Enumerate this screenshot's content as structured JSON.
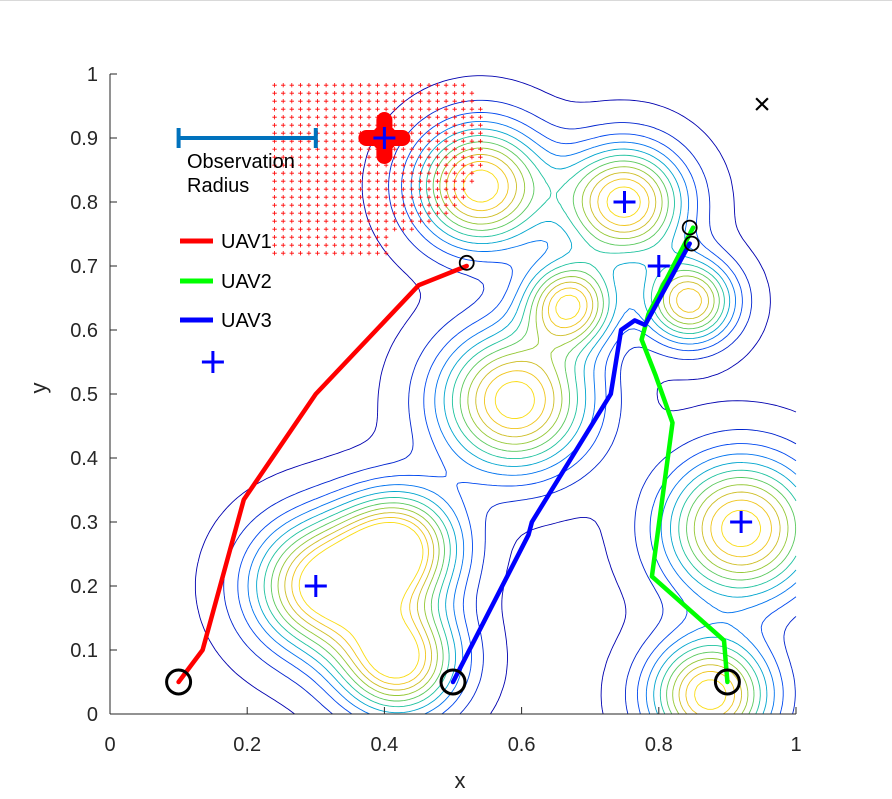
{
  "chart_data": {
    "type": "line",
    "xlabel": "x",
    "ylabel": "y",
    "xlim": [
      0,
      1
    ],
    "ylim": [
      0,
      1
    ],
    "xticks": [
      0,
      0.2,
      0.4,
      0.6,
      0.8,
      1
    ],
    "yticks": [
      0,
      0.1,
      0.2,
      0.3,
      0.4,
      0.5,
      0.6,
      0.7,
      0.8,
      0.9,
      1
    ],
    "xtick_labels": [
      "0",
      "0.2",
      "0.4",
      "0.6",
      "0.8",
      "1"
    ],
    "ytick_labels": [
      "0",
      "0.1",
      "0.2",
      "0.3",
      "0.4",
      "0.5",
      "0.6",
      "0.7",
      "0.8",
      "0.9",
      "1"
    ],
    "colors": {
      "uav1": "#ff0000",
      "uav2": "#00ff00",
      "uav3": "#0000ff",
      "targets": "#0000ff",
      "grid_points": "#ff0000",
      "radius_bar": "#0072bd",
      "start_marker": "#000000"
    },
    "series": [
      {
        "name": "UAV1",
        "x": [
          0.1,
          0.135,
          0.195,
          0.3,
          0.45,
          0.52
        ],
        "y": [
          0.05,
          0.1,
          0.335,
          0.5,
          0.67,
          0.7
        ]
      },
      {
        "name": "UAV2",
        "x": [
          0.9,
          0.895,
          0.79,
          0.82,
          0.795,
          0.775,
          0.785,
          0.85
        ],
        "y": [
          0.05,
          0.115,
          0.215,
          0.455,
          0.53,
          0.585,
          0.625,
          0.76
        ]
      },
      {
        "name": "UAV3",
        "x": [
          0.5,
          0.61,
          0.615,
          0.73,
          0.745,
          0.765,
          0.78,
          0.845
        ],
        "y": [
          0.05,
          0.28,
          0.3,
          0.5,
          0.6,
          0.615,
          0.608,
          0.735
        ]
      }
    ],
    "legend": {
      "entries": [
        "UAV1",
        "UAV2",
        "UAV3"
      ],
      "location": "upper-left"
    },
    "start_points": [
      {
        "x": 0.1,
        "y": 0.05
      },
      {
        "x": 0.5,
        "y": 0.05
      },
      {
        "x": 0.9,
        "y": 0.05
      }
    ],
    "end_points": [
      {
        "x": 0.52,
        "y": 0.705
      },
      {
        "x": 0.845,
        "y": 0.76
      },
      {
        "x": 0.848,
        "y": 0.735
      }
    ],
    "targets": [
      {
        "x": 0.4,
        "y": 0.9
      },
      {
        "x": 0.75,
        "y": 0.8
      },
      {
        "x": 0.8,
        "y": 0.7
      },
      {
        "x": 0.15,
        "y": 0.55
      },
      {
        "x": 0.92,
        "y": 0.3
      },
      {
        "x": 0.3,
        "y": 0.2
      }
    ],
    "goal_marker": {
      "symbol": "×",
      "x": 0.95,
      "y": 0.95
    },
    "observation_radius": {
      "label_line1": "Observation",
      "label_line2": "Radius",
      "x_start": 0.1,
      "x_end": 0.3,
      "y": 0.9
    },
    "visited_region": {
      "x_range": [
        0.24,
        0.58
      ],
      "y_range": [
        0.72,
        0.99
      ],
      "step": 0.0125,
      "circle_center": [
        0.4,
        0.9
      ],
      "circle_radius": 0.15
    },
    "contour_peaks": [
      {
        "x": 0.54,
        "y": 0.825,
        "h": 1.0,
        "s": 0.065
      },
      {
        "x": 0.75,
        "y": 0.8,
        "h": 1.0,
        "s": 0.06
      },
      {
        "x": 0.67,
        "y": 0.64,
        "h": 0.9,
        "s": 0.045
      },
      {
        "x": 0.845,
        "y": 0.645,
        "h": 0.9,
        "s": 0.045
      },
      {
        "x": 0.59,
        "y": 0.49,
        "h": 1.0,
        "s": 0.075
      },
      {
        "x": 0.31,
        "y": 0.2,
        "h": 1.0,
        "s": 0.07
      },
      {
        "x": 0.42,
        "y": 0.26,
        "h": 1.0,
        "s": 0.06
      },
      {
        "x": 0.42,
        "y": 0.085,
        "h": 1.0,
        "s": 0.06
      },
      {
        "x": 0.92,
        "y": 0.29,
        "h": 1.0,
        "s": 0.075
      },
      {
        "x": 0.875,
        "y": 0.03,
        "h": 1.0,
        "s": 0.06
      }
    ],
    "contour_levels": [
      0.03,
      0.12,
      0.21,
      0.3,
      0.39,
      0.48,
      0.57,
      0.66,
      0.75,
      0.84,
      0.93
    ]
  }
}
